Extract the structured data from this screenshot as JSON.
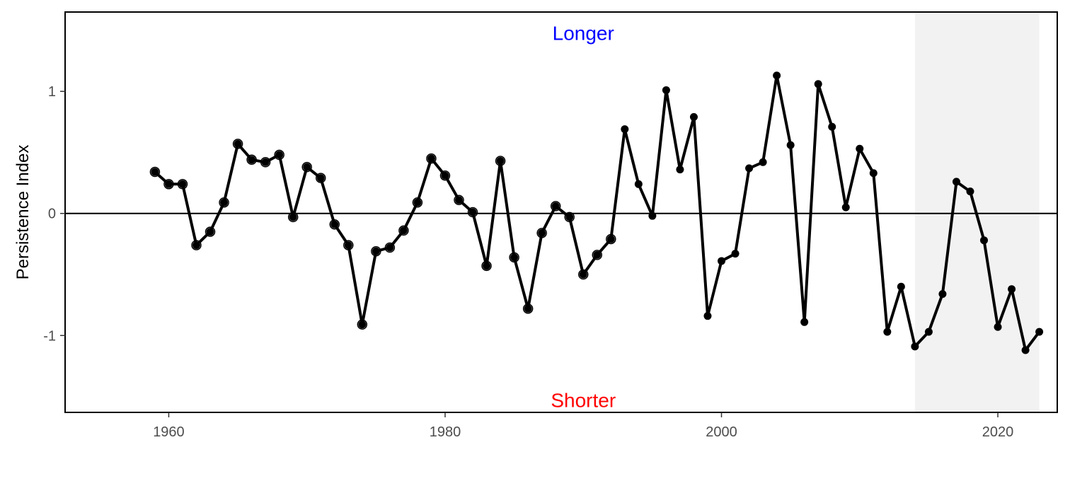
{
  "chart_data": {
    "type": "line",
    "ylabel": "Persistence Index",
    "xlim": [
      1952.5,
      2024.3
    ],
    "ylim": [
      -1.63,
      1.65
    ],
    "x_ticks": [
      1960,
      1980,
      2000,
      2020
    ],
    "x_tick_labels": [
      "1960",
      "1980",
      "2000",
      "2020"
    ],
    "y_ticks": [
      -1,
      0,
      1
    ],
    "y_tick_labels": [
      "-1",
      "0",
      "1"
    ],
    "reference_line": 0,
    "grid": false,
    "shaded_region": {
      "x_start": 2014,
      "x_end": 2023,
      "color": "#f2f2f2"
    },
    "annotations": [
      {
        "text": "Longer",
        "color": "#0000ff",
        "x": 1990,
        "y": 1.48
      },
      {
        "text": "Shorter",
        "color": "#ff0000",
        "x": 1990,
        "y": -1.53
      }
    ],
    "open_marker_end_year": 1992,
    "line_color": "#000000",
    "series": [
      {
        "x": [
          1959,
          1960,
          1961,
          1962,
          1963,
          1964,
          1965,
          1966,
          1967,
          1968,
          1969,
          1970,
          1971,
          1972,
          1973,
          1974,
          1975,
          1976,
          1977,
          1978,
          1979,
          1980,
          1981,
          1982,
          1983,
          1984,
          1985,
          1986,
          1987,
          1988,
          1989,
          1990,
          1991,
          1992,
          1993,
          1994,
          1995,
          1996,
          1997,
          1998,
          1999,
          2000,
          2001,
          2002,
          2003,
          2004,
          2005,
          2006,
          2007,
          2008,
          2009,
          2010,
          2011,
          2012,
          2013,
          2014,
          2015,
          2016,
          2017,
          2018,
          2019,
          2020,
          2021,
          2022,
          2023
        ],
        "values": [
          0.34,
          0.24,
          0.24,
          -0.26,
          -0.15,
          0.09,
          0.57,
          0.44,
          0.42,
          0.48,
          -0.03,
          0.38,
          0.29,
          -0.09,
          -0.26,
          -0.91,
          -0.31,
          -0.28,
          -0.14,
          0.09,
          0.45,
          0.31,
          0.11,
          0.01,
          -0.43,
          0.43,
          -0.36,
          -0.78,
          -0.16,
          0.06,
          -0.03,
          -0.5,
          -0.34,
          -0.21,
          0.69,
          0.24,
          -0.02,
          1.01,
          0.36,
          0.79,
          -0.84,
          -0.39,
          -0.33,
          0.37,
          0.42,
          1.13,
          0.56,
          -0.89,
          1.06,
          0.71,
          0.05,
          0.53,
          0.33,
          -0.97,
          -0.6,
          -1.09,
          -0.97,
          -0.66,
          0.26,
          0.18,
          -0.22,
          -0.93,
          -0.62,
          -1.12,
          -0.97
        ]
      }
    ]
  }
}
